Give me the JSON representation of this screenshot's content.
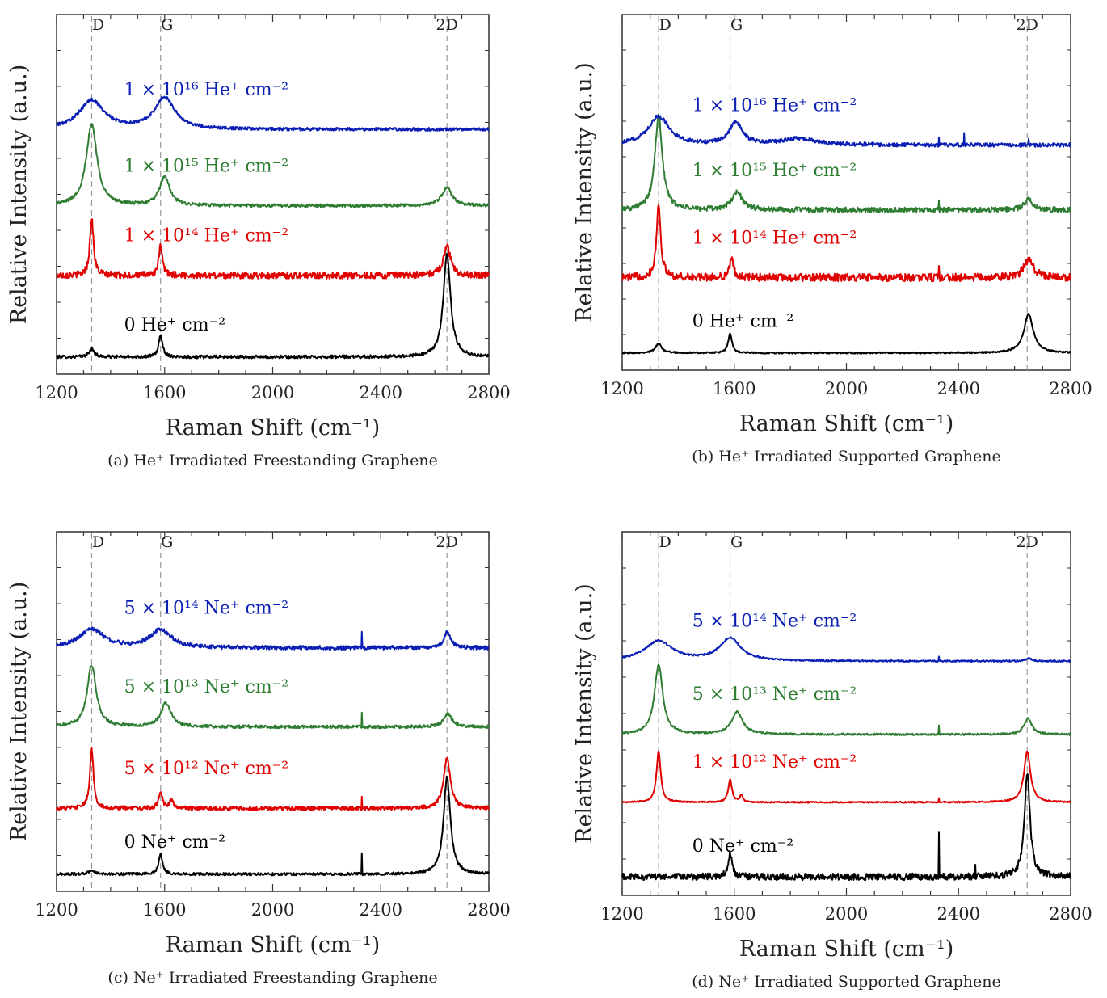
{
  "chart_data": [
    {
      "type": "line",
      "caption": "(a) He⁺ Irradiated Freestanding Graphene",
      "xlabel": "Raman Shift (cm⁻¹)",
      "ylabel": "Relative Intensity (a.u.)",
      "xlim": [
        1200,
        2800
      ],
      "xticks": [
        1200,
        1600,
        2000,
        2400,
        2800
      ],
      "peaks": [
        {
          "label": "D",
          "x": 1330
        },
        {
          "label": "G",
          "x": 1585
        },
        {
          "label": "2D",
          "x": 2645
        }
      ],
      "series": [
        {
          "name": "0 He⁺ cm⁻²",
          "color": "#000000",
          "offset": 0,
          "baseline": 0.02,
          "noise": 0.012,
          "spikes": [],
          "peaks": [
            {
              "x": 1330,
              "h": 0.06,
              "w": 12
            },
            {
              "x": 1585,
              "h": 0.16,
              "w": 9
            },
            {
              "x": 2645,
              "h": 0.78,
              "w": 16
            }
          ]
        },
        {
          "name": "1 × 10¹⁴ He⁺ cm⁻²",
          "color": "#e00000",
          "offset": 0.62,
          "baseline": 0.02,
          "noise": 0.025,
          "spikes": [],
          "peaks": [
            {
              "x": 1330,
              "h": 0.44,
              "w": 8
            },
            {
              "x": 1585,
              "h": 0.22,
              "w": 8
            },
            {
              "x": 2645,
              "h": 0.22,
              "w": 16
            }
          ]
        },
        {
          "name": "1 × 10¹⁵ He⁺ cm⁻²",
          "color": "#2e7d32",
          "offset": 1.15,
          "baseline": 0.02,
          "noise": 0.012,
          "spikes": [],
          "peaks": [
            {
              "x": 1330,
              "h": 0.62,
              "w": 24
            },
            {
              "x": 1600,
              "h": 0.22,
              "w": 22
            },
            {
              "x": 2645,
              "h": 0.14,
              "w": 22
            }
          ]
        },
        {
          "name": "1 × 10¹⁶ He⁺ cm⁻²",
          "color": "#0b1fb5",
          "offset": 1.73,
          "baseline": 0.02,
          "noise": 0.012,
          "spikes": [],
          "peaks": [
            {
              "x": 1330,
              "h": 0.22,
              "w": 55
            },
            {
              "x": 1600,
              "h": 0.24,
              "w": 45
            }
          ]
        }
      ]
    },
    {
      "type": "line",
      "caption": "(b) He⁺ Irradiated Supported Graphene",
      "xlabel": "Raman Shift (cm⁻¹)",
      "ylabel": "Relative Intensity (a.u.)",
      "xlim": [
        1200,
        2800
      ],
      "xticks": [
        1200,
        1600,
        2000,
        2400,
        2800
      ],
      "peaks": [
        {
          "label": "D",
          "x": 1330
        },
        {
          "label": "G",
          "x": 1585
        },
        {
          "label": "2D",
          "x": 2645
        }
      ],
      "series": [
        {
          "name": "0 He⁺ cm⁻²",
          "color": "#000000",
          "offset": 0,
          "baseline": 0.02,
          "noise": 0.006,
          "spikes": [],
          "peaks": [
            {
              "x": 1330,
              "h": 0.07,
              "w": 14
            },
            {
              "x": 1585,
              "h": 0.15,
              "w": 8
            },
            {
              "x": 2650,
              "h": 0.3,
              "w": 20
            }
          ]
        },
        {
          "name": "1 × 10¹⁴ He⁺ cm⁻²",
          "color": "#e00000",
          "offset": 0.58,
          "baseline": 0.02,
          "noise": 0.03,
          "spikes": [
            {
              "x": 2330,
              "h": 0.08
            }
          ],
          "peaks": [
            {
              "x": 1330,
              "h": 0.56,
              "w": 9
            },
            {
              "x": 1590,
              "h": 0.14,
              "w": 9
            },
            {
              "x": 2650,
              "h": 0.14,
              "w": 20
            }
          ]
        },
        {
          "name": "1 × 10¹⁵ He⁺ cm⁻²",
          "color": "#2e7d32",
          "offset": 1.1,
          "baseline": 0.02,
          "noise": 0.02,
          "spikes": [
            {
              "x": 2330,
              "h": 0.08
            }
          ],
          "peaks": [
            {
              "x": 1330,
              "h": 0.72,
              "w": 16
            },
            {
              "x": 1610,
              "h": 0.14,
              "w": 22
            },
            {
              "x": 2650,
              "h": 0.08,
              "w": 20
            }
          ]
        },
        {
          "name": "1 × 10¹⁶ He⁺ cm⁻²",
          "color": "#0b1fb5",
          "offset": 1.6,
          "baseline": 0.02,
          "noise": 0.015,
          "spikes": [
            {
              "x": 2330,
              "h": 0.07
            },
            {
              "x": 2420,
              "h": 0.1
            },
            {
              "x": 2650,
              "h": 0.05
            }
          ],
          "peaks": [
            {
              "x": 1330,
              "h": 0.22,
              "w": 45
            },
            {
              "x": 1605,
              "h": 0.17,
              "w": 28
            },
            {
              "x": 1830,
              "h": 0.05,
              "w": 70
            }
          ]
        }
      ]
    },
    {
      "type": "line",
      "caption": "(c) Ne⁺ Irradiated Freestanding Graphene",
      "xlabel": "Raman Shift (cm⁻¹)",
      "ylabel": "Relative Intensity (a.u.)",
      "xlim": [
        1200,
        2800
      ],
      "xticks": [
        1200,
        1600,
        2000,
        2400,
        2800
      ],
      "peaks": [
        {
          "label": "D",
          "x": 1330
        },
        {
          "label": "G",
          "x": 1585
        },
        {
          "label": "2D",
          "x": 2645
        }
      ],
      "series": [
        {
          "name": "0 Ne⁺ cm⁻²",
          "color": "#000000",
          "offset": 0,
          "baseline": 0.02,
          "noise": 0.01,
          "spikes": [
            {
              "x": 2330,
              "h": 0.16
            }
          ],
          "peaks": [
            {
              "x": 1330,
              "h": 0.03,
              "w": 12
            },
            {
              "x": 1585,
              "h": 0.15,
              "w": 9
            },
            {
              "x": 2645,
              "h": 0.74,
              "w": 15
            }
          ]
        },
        {
          "name": "5 × 10¹² Ne⁺ cm⁻²",
          "color": "#e00000",
          "offset": 0.5,
          "baseline": 0.02,
          "noise": 0.015,
          "spikes": [
            {
              "x": 2330,
              "h": 0.1
            }
          ],
          "peaks": [
            {
              "x": 1330,
              "h": 0.45,
              "w": 8
            },
            {
              "x": 1585,
              "h": 0.13,
              "w": 8
            },
            {
              "x": 1625,
              "h": 0.06,
              "w": 8
            },
            {
              "x": 2645,
              "h": 0.38,
              "w": 15
            }
          ]
        },
        {
          "name": "5 × 10¹³ Ne⁺ cm⁻²",
          "color": "#2e7d32",
          "offset": 1.12,
          "baseline": 0.02,
          "noise": 0.012,
          "spikes": [
            {
              "x": 2330,
              "h": 0.1
            }
          ],
          "peaks": [
            {
              "x": 1330,
              "h": 0.47,
              "w": 20
            },
            {
              "x": 1605,
              "h": 0.18,
              "w": 22
            },
            {
              "x": 2648,
              "h": 0.1,
              "w": 18
            }
          ]
        },
        {
          "name": "5 × 10¹⁴ Ne⁺ cm⁻²",
          "color": "#0b1fb5",
          "offset": 1.72,
          "baseline": 0.02,
          "noise": 0.015,
          "spikes": [
            {
              "x": 2330,
              "h": 0.12
            }
          ],
          "peaks": [
            {
              "x": 1330,
              "h": 0.14,
              "w": 55
            },
            {
              "x": 1585,
              "h": 0.14,
              "w": 45
            },
            {
              "x": 2645,
              "h": 0.12,
              "w": 15
            }
          ]
        }
      ]
    },
    {
      "type": "line",
      "caption": "(d) Ne⁺ Irradiated Supported Graphene",
      "xlabel": "Raman Shift (cm⁻¹)",
      "ylabel": "Relative Intensity (a.u.)",
      "xlim": [
        1200,
        2800
      ],
      "xticks": [
        1200,
        1600,
        2000,
        2400,
        2800
      ],
      "peaks": [
        {
          "label": "D",
          "x": 1330
        },
        {
          "label": "G",
          "x": 1585
        },
        {
          "label": "2D",
          "x": 2645
        }
      ],
      "series": [
        {
          "name": "0 Ne⁺ cm⁻²",
          "color": "#000000",
          "offset": 0,
          "baseline": 0.03,
          "noise": 0.025,
          "spikes": [
            {
              "x": 2330,
              "h": 0.32
            },
            {
              "x": 2460,
              "h": 0.08
            }
          ],
          "peaks": [
            {
              "x": 1585,
              "h": 0.18,
              "w": 8
            },
            {
              "x": 2645,
              "h": 0.78,
              "w": 12
            }
          ]
        },
        {
          "name": "1 × 10¹² Ne⁺ cm⁻²",
          "color": "#e00000",
          "offset": 0.57,
          "baseline": 0.02,
          "noise": 0.005,
          "spikes": [
            {
              "x": 2330,
              "h": 0.03
            }
          ],
          "peaks": [
            {
              "x": 1330,
              "h": 0.38,
              "w": 9
            },
            {
              "x": 1585,
              "h": 0.17,
              "w": 8
            },
            {
              "x": 1625,
              "h": 0.05,
              "w": 7
            },
            {
              "x": 2645,
              "h": 0.38,
              "w": 14
            }
          ]
        },
        {
          "name": "5 × 10¹³ Ne⁺ cm⁻²",
          "color": "#2e7d32",
          "offset": 1.08,
          "baseline": 0.02,
          "noise": 0.007,
          "spikes": [
            {
              "x": 2330,
              "h": 0.07
            }
          ],
          "peaks": [
            {
              "x": 1330,
              "h": 0.52,
              "w": 18
            },
            {
              "x": 1610,
              "h": 0.17,
              "w": 24
            },
            {
              "x": 2648,
              "h": 0.12,
              "w": 16
            }
          ]
        },
        {
          "name": "5 × 10¹⁴ Ne⁺ cm⁻²",
          "color": "#0b1fb5",
          "offset": 1.63,
          "baseline": 0.02,
          "noise": 0.006,
          "spikes": [
            {
              "x": 2330,
              "h": 0.04
            }
          ],
          "peaks": [
            {
              "x": 1330,
              "h": 0.15,
              "w": 60
            },
            {
              "x": 1585,
              "h": 0.17,
              "w": 45
            },
            {
              "x": 2650,
              "h": 0.02,
              "w": 15
            }
          ]
        }
      ]
    }
  ]
}
